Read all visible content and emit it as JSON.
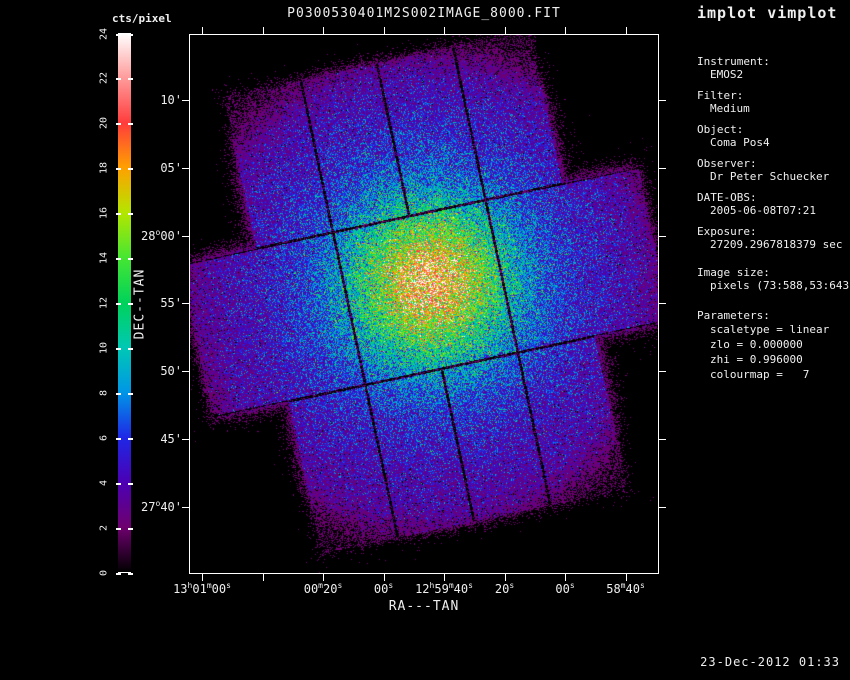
{
  "window": {
    "app_title": "implot vimplot",
    "timestamp": "23-Dec-2012 01:33"
  },
  "plot": {
    "title": "P0300530401M2S002IMAGE_8000.FIT",
    "xlabel": "RA---TAN",
    "ylabel": "DEC--TAN",
    "x_tick_labels": [
      "13{h}01{m}00{s}",
      "",
      "00{m}20{s}",
      "00{s}",
      "12{h}59{m}40{s}",
      "20{s}",
      "00{s}",
      "58{m}40{s}"
    ],
    "y_tick_labels": [
      "10'",
      "05'",
      "28{o}00'",
      "55'",
      "50'",
      "45'",
      "27{o}40'"
    ]
  },
  "colorbar": {
    "label": "cts/pixel",
    "min": 0,
    "max": 24,
    "tick_values": [
      24,
      22,
      20,
      18,
      16,
      14,
      12,
      10,
      8,
      6,
      4,
      2,
      0
    ],
    "stops": [
      {
        "v": 0,
        "c": "#000000"
      },
      {
        "v": 2,
        "c": "#6e006e"
      },
      {
        "v": 4,
        "c": "#4b00b4"
      },
      {
        "v": 6,
        "c": "#1e28e6"
      },
      {
        "v": 8,
        "c": "#0096e6"
      },
      {
        "v": 10,
        "c": "#00c8b4"
      },
      {
        "v": 12,
        "c": "#00d25a"
      },
      {
        "v": 14,
        "c": "#46e632"
      },
      {
        "v": 16,
        "c": "#b4e600"
      },
      {
        "v": 18,
        "c": "#ffa000"
      },
      {
        "v": 20,
        "c": "#ff3c3c"
      },
      {
        "v": 22,
        "c": "#ff9b9b"
      },
      {
        "v": 24,
        "c": "#ffffff"
      }
    ]
  },
  "info_panel": {
    "fields": [
      {
        "label": "Instrument:",
        "value": "EMOS2"
      },
      {
        "label": "Filter:",
        "value": "Medium"
      },
      {
        "label": "Object:",
        "value": "Coma Pos4"
      },
      {
        "label": "Observer:",
        "value": "Dr Peter Schuecker"
      },
      {
        "label": "DATE-OBS:",
        "value": "2005-06-08T07:21"
      },
      {
        "label": "Exposure:",
        "value": "27209.2967818379 sec"
      }
    ],
    "image_size_label": "Image size:",
    "image_size_value": "pixels (73:588,53:643)",
    "parameters_label": "Parameters:",
    "parameter_lines": [
      "scaletype = linear",
      "zlo = 0.000000",
      "zhi = 0.996000",
      "colourmap =   7"
    ]
  },
  "scene": {
    "description": "X-ray image of Coma cluster on rotated 7-CCD MOS detector footprint",
    "peak_counts": 18,
    "fov_background_counts": 2.2,
    "chip_background_counts": 0.33,
    "rotation_deg": -12
  }
}
